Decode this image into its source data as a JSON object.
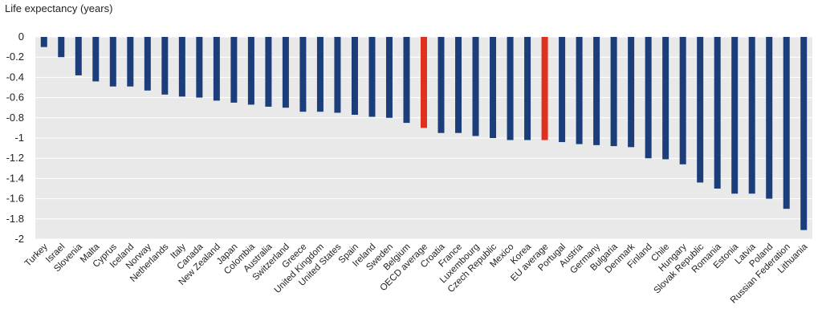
{
  "chart_data": {
    "type": "bar",
    "ylabel": "Life expectancy (years)",
    "xlabel": "",
    "ylim": [
      -2,
      0
    ],
    "yticks": [
      0,
      -0.2,
      -0.4,
      -0.6,
      -0.8,
      -1,
      -1.2,
      -1.4,
      -1.6,
      -1.8,
      -2
    ],
    "ytick_labels": [
      "0",
      "-0.2",
      "-0.4",
      "-0.6",
      "-0.8",
      "-1",
      "-1.2",
      "-1.4",
      "-1.6",
      "-1.8",
      "-2"
    ],
    "grid": true,
    "categories": [
      "Turkey",
      "Israel",
      "Slovenia",
      "Malta",
      "Cyprus",
      "Iceland",
      "Norway",
      "Netherlands",
      "Italy",
      "Canada",
      "New Zealand",
      "Japan",
      "Colombia",
      "Australia",
      "Switzerland",
      "Greece",
      "United Kingdom",
      "United States",
      "Spain",
      "Ireland",
      "Sweden",
      "Belgium",
      "OECD average",
      "Croatia",
      "France",
      "Luxembourg",
      "Czech Republic",
      "Mexico",
      "Korea",
      "EU average",
      "Portugal",
      "Austria",
      "Germany",
      "Bulgaria",
      "Denmark",
      "Finland",
      "Chile",
      "Hungary",
      "Slovak Republic",
      "Romania",
      "Estonia",
      "Latvia",
      "Poland",
      "Russian Federation",
      "Lithuania"
    ],
    "values": [
      -0.1,
      -0.2,
      -0.38,
      -0.44,
      -0.49,
      -0.49,
      -0.53,
      -0.57,
      -0.59,
      -0.6,
      -0.63,
      -0.65,
      -0.67,
      -0.69,
      -0.7,
      -0.74,
      -0.74,
      -0.75,
      -0.77,
      -0.79,
      -0.8,
      -0.85,
      -0.9,
      -0.95,
      -0.95,
      -0.98,
      -1.0,
      -1.02,
      -1.02,
      -1.02,
      -1.04,
      -1.06,
      -1.07,
      -1.08,
      -1.09,
      -1.2,
      -1.21,
      -1.26,
      -1.44,
      -1.5,
      -1.55,
      -1.55,
      -1.6,
      -1.7,
      -1.91
    ],
    "highlight": [
      "OECD average",
      "EU average"
    ],
    "colors": {
      "bar": "#1b3e7a",
      "highlight": "#e0301e",
      "plot_bg": "#e9e9e9",
      "grid": "#ffffff",
      "text": "#222222"
    }
  }
}
